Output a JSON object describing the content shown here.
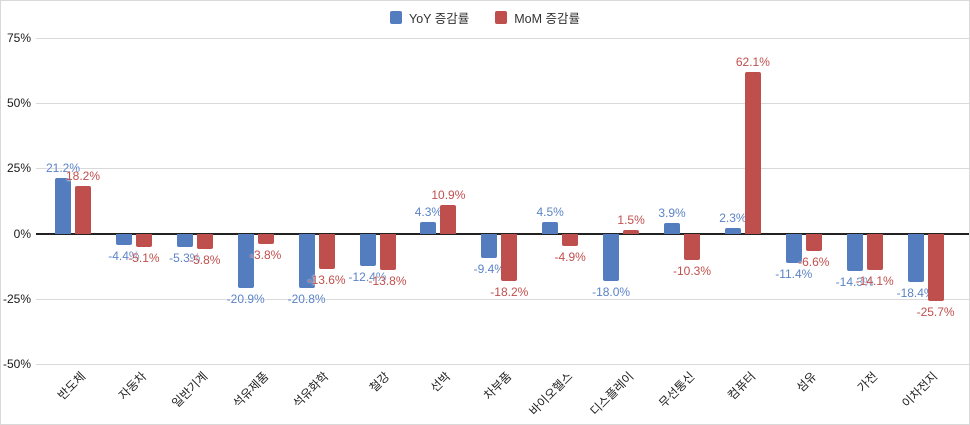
{
  "chart_data": {
    "type": "bar",
    "title": "",
    "xlabel": "",
    "ylabel": "",
    "ylim": [
      -50,
      75
    ],
    "yticks": [
      75,
      50,
      25,
      0,
      -25,
      -50
    ],
    "ytick_labels": [
      "75%",
      "50%",
      "25%",
      "0%",
      "-25%",
      "-50%"
    ],
    "grid": true,
    "legend_position": "top",
    "categories": [
      "반도체",
      "자동차",
      "일반기계",
      "석유제품",
      "석유화학",
      "철강",
      "선박",
      "차부품",
      "바이오헬스",
      "디스플레이",
      "무선통신",
      "컴퓨터",
      "섬유",
      "가전",
      "이차전지"
    ],
    "series": [
      {
        "name": "YoY 증감률",
        "color": "#537DBE",
        "label_color": "#5B83C6",
        "values": [
          21.2,
          -4.4,
          -5.3,
          -20.9,
          -20.8,
          -12.4,
          4.3,
          -9.4,
          4.5,
          -18.0,
          3.9,
          2.3,
          -11.4,
          -14.3,
          -18.4
        ],
        "labels": [
          "21.2%",
          "-4.4%",
          "-5.3%",
          "-20.9%",
          "-20.8%",
          "-12.4%",
          "4.3%",
          "-9.4%",
          "4.5%",
          "-18.0%",
          "3.9%",
          "2.3%",
          "-11.4%",
          "-14.3%",
          "-18.4%"
        ]
      },
      {
        "name": "MoM 증감률",
        "color": "#BE4F4C",
        "label_color": "#C0504D",
        "values": [
          18.2,
          -5.1,
          -5.8,
          -3.8,
          -13.6,
          -13.8,
          10.9,
          -18.2,
          -4.9,
          1.5,
          -10.3,
          62.1,
          -6.6,
          -14.1,
          -25.7
        ],
        "labels": [
          "18.2%",
          "-5.1%",
          "-5.8%",
          "-3.8%",
          "-13.6%",
          "-13.8%",
          "10.9%",
          "-18.2%",
          "-4.9%",
          "1.5%",
          "-10.3%",
          "62.1%",
          "-6.6%",
          "-14.1%",
          "-25.7%"
        ]
      }
    ]
  }
}
